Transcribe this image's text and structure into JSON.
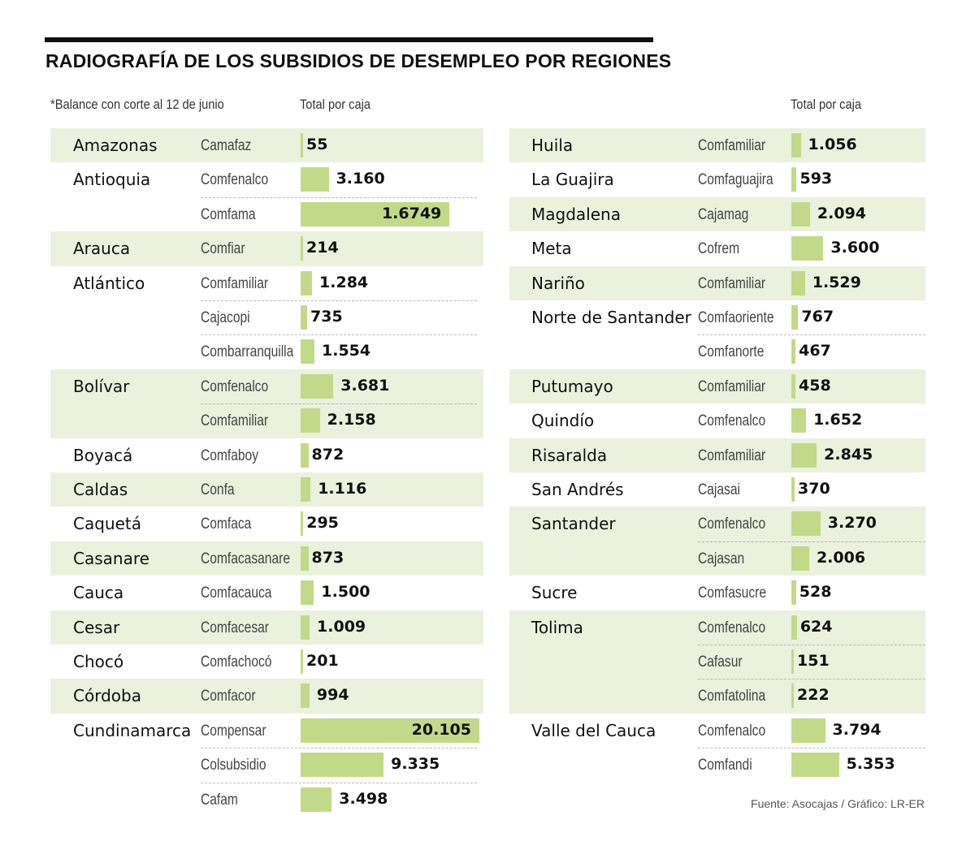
{
  "title": "RADIOGRAFÍA DE LOS SUBSIDIOS DE DESEMPLEO POR REGIONES",
  "note": "*Balance con corte al 12 de junio",
  "header_left": "Total por caja",
  "header_right": "Total por caja",
  "source": "Fuente: Asocajas / Gráfico: LR-ER",
  "colors": {
    "band": "#eaf1dd",
    "bar": "#c2d98a",
    "text": "#111111",
    "rule": "#111111"
  },
  "chart_data": {
    "type": "bar",
    "title": "RADIOGRAFÍA DE LOS SUBSIDIOS DE DESEMPLEO POR REGIONES",
    "value_header": "Total por caja",
    "columns": [
      {
        "regions": [
          {
            "name": "Amazonas",
            "cajas": [
              {
                "caja": "Camafaz",
                "label": "55",
                "value": 55
              }
            ]
          },
          {
            "name": "Antioquia",
            "cajas": [
              {
                "caja": "Comfenalco",
                "label": "3.160",
                "value": 3160
              },
              {
                "caja": "Comfama",
                "label": "1.6749",
                "value": 16749
              }
            ]
          },
          {
            "name": "Arauca",
            "cajas": [
              {
                "caja": "Comfiar",
                "label": "214",
                "value": 214
              }
            ]
          },
          {
            "name": "Atlántico",
            "cajas": [
              {
                "caja": "Comfamiliar",
                "label": "1.284",
                "value": 1284
              },
              {
                "caja": "Cajacopi",
                "label": "735",
                "value": 735
              },
              {
                "caja": "Combarranquilla",
                "label": "1.554",
                "value": 1554
              }
            ]
          },
          {
            "name": "Bolívar",
            "cajas": [
              {
                "caja": "Comfenalco",
                "label": "3.681",
                "value": 3681
              },
              {
                "caja": "Comfamiliar",
                "label": "2.158",
                "value": 2158
              }
            ]
          },
          {
            "name": "Boyacá",
            "cajas": [
              {
                "caja": "Comfaboy",
                "label": "872",
                "value": 872
              }
            ]
          },
          {
            "name": "Caldas",
            "cajas": [
              {
                "caja": "Confa",
                "label": "1.116",
                "value": 1116
              }
            ]
          },
          {
            "name": "Caquetá",
            "cajas": [
              {
                "caja": "Comfaca",
                "label": "295",
                "value": 295
              }
            ]
          },
          {
            "name": "Casanare",
            "cajas": [
              {
                "caja": "Comfacasanare",
                "label": "873",
                "value": 873
              }
            ]
          },
          {
            "name": "Cauca",
            "cajas": [
              {
                "caja": "Comfacauca",
                "label": "1.500",
                "value": 1500
              }
            ]
          },
          {
            "name": "Cesar",
            "cajas": [
              {
                "caja": "Comfacesar",
                "label": "1.009",
                "value": 1009
              }
            ]
          },
          {
            "name": "Chocó",
            "cajas": [
              {
                "caja": "Comfachocó",
                "label": "201",
                "value": 201
              }
            ]
          },
          {
            "name": "Córdoba",
            "cajas": [
              {
                "caja": "Comfacor",
                "label": "994",
                "value": 994
              }
            ]
          },
          {
            "name": "Cundinamarca",
            "cajas": [
              {
                "caja": "Compensar",
                "label": "20.105",
                "value": 20105
              },
              {
                "caja": "Colsubsidio",
                "label": "9.335",
                "value": 9335
              },
              {
                "caja": "Cafam",
                "label": "3.498",
                "value": 3498
              }
            ]
          }
        ]
      },
      {
        "regions": [
          {
            "name": "Huila",
            "cajas": [
              {
                "caja": "Comfamiliar",
                "label": "1.056",
                "value": 1056
              }
            ]
          },
          {
            "name": "La Guajira",
            "cajas": [
              {
                "caja": "Comfaguajira",
                "label": "593",
                "value": 593
              }
            ]
          },
          {
            "name": "Magdalena",
            "cajas": [
              {
                "caja": "Cajamag",
                "label": "2.094",
                "value": 2094
              }
            ]
          },
          {
            "name": "Meta",
            "cajas": [
              {
                "caja": "Cofrem",
                "label": "3.600",
                "value": 3600
              }
            ]
          },
          {
            "name": "Nariño",
            "cajas": [
              {
                "caja": "Comfamiliar",
                "label": "1.529",
                "value": 1529
              }
            ]
          },
          {
            "name": "Norte de Santander",
            "cajas": [
              {
                "caja": "Comfaoriente",
                "label": "767",
                "value": 767
              },
              {
                "caja": "Comfanorte",
                "label": "467",
                "value": 467
              }
            ]
          },
          {
            "name": "Putumayo",
            "cajas": [
              {
                "caja": "Comfamiliar",
                "label": "458",
                "value": 458
              }
            ]
          },
          {
            "name": "Quindío",
            "cajas": [
              {
                "caja": "Comfenalco",
                "label": "1.652",
                "value": 1652
              }
            ]
          },
          {
            "name": "Risaralda",
            "cajas": [
              {
                "caja": "Comfamiliar",
                "label": "2.845",
                "value": 2845
              }
            ]
          },
          {
            "name": "San Andrés",
            "cajas": [
              {
                "caja": "Cajasai",
                "label": "370",
                "value": 370
              }
            ]
          },
          {
            "name": "Santander",
            "cajas": [
              {
                "caja": "Comfenalco",
                "label": "3.270",
                "value": 3270
              },
              {
                "caja": "Cajasan",
                "label": "2.006",
                "value": 2006
              }
            ]
          },
          {
            "name": "Sucre",
            "cajas": [
              {
                "caja": "Comfasucre",
                "label": "528",
                "value": 528
              }
            ]
          },
          {
            "name": "Tolima",
            "cajas": [
              {
                "caja": "Comfenalco",
                "label": "624",
                "value": 624
              },
              {
                "caja": "Cafasur",
                "label": "151",
                "value": 151
              },
              {
                "caja": "Comfatolina",
                "label": "222",
                "value": 222
              }
            ]
          },
          {
            "name": "Valle del Cauca",
            "cajas": [
              {
                "caja": "Comfenalco",
                "label": "3.794",
                "value": 3794
              },
              {
                "caja": "Comfandi",
                "label": "5.353",
                "value": 5353
              }
            ]
          }
        ]
      }
    ]
  }
}
